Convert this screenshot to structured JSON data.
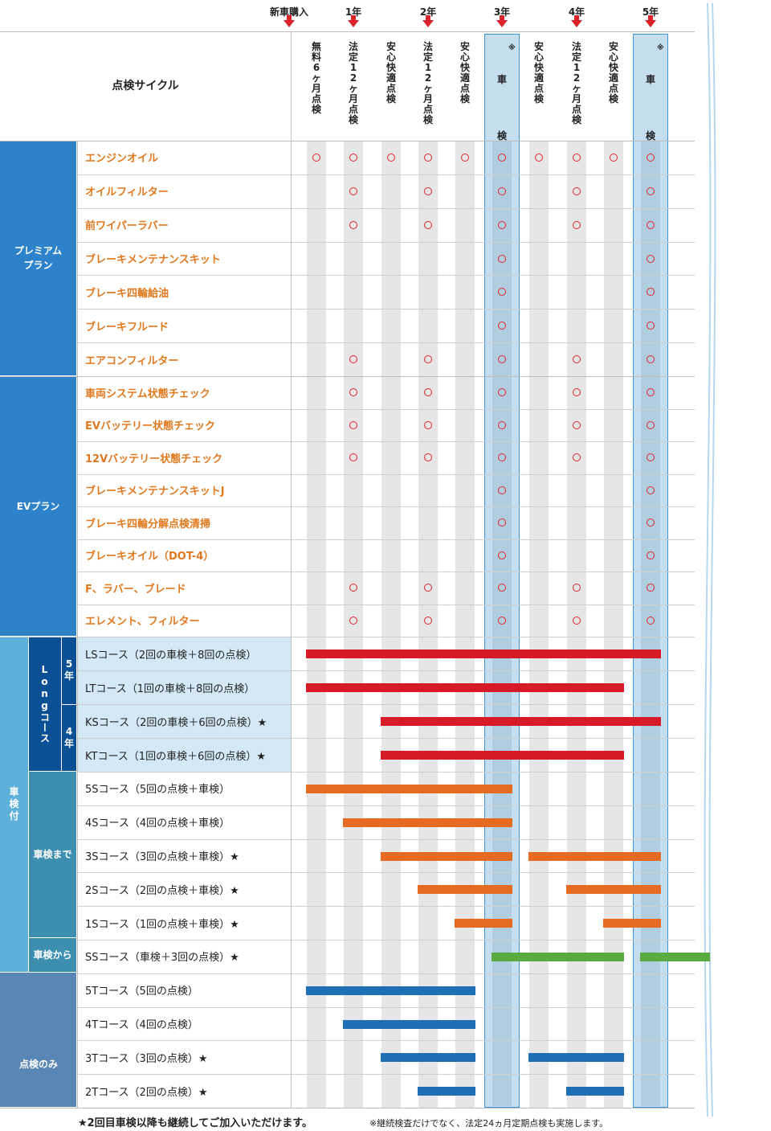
{
  "header": {
    "purchase_label": "新車購入",
    "year_labels": [
      "1年",
      "2年",
      "3年",
      "4年",
      "5年"
    ],
    "cycle_label": "点検サイクル",
    "columns": [
      "無料6ヶ月点検",
      "法定12ヶ月点検",
      "安心快適点検",
      "法定12ヶ月点検",
      "安心快適点検",
      "車検",
      "安心快適点検",
      "法定12ヶ月点検",
      "安心快適点検",
      "車検"
    ],
    "asterisk": "※"
  },
  "groups": {
    "premium": "プレミアムプラン",
    "ev": "EVプラン",
    "shaken_tsuki": "車検付",
    "long_course": "Longコース",
    "five_year": "5年",
    "four_year": "4年",
    "shaken_made": "車検まで",
    "shaken_kara": "車検から",
    "tenken_nomi": "点検のみ"
  },
  "items": [
    {
      "label": "エンジンオイル",
      "marks": [
        1,
        1,
        1,
        1,
        1,
        1,
        1,
        1,
        1,
        1
      ]
    },
    {
      "label": "オイルフィルター",
      "marks": [
        0,
        1,
        0,
        1,
        0,
        1,
        0,
        1,
        0,
        1
      ]
    },
    {
      "label": "前ワイパーラバー",
      "marks": [
        0,
        1,
        0,
        1,
        0,
        1,
        0,
        1,
        0,
        1
      ]
    },
    {
      "label": "ブレーキメンテナンスキット",
      "marks": [
        0,
        0,
        0,
        0,
        0,
        1,
        0,
        0,
        0,
        1
      ]
    },
    {
      "label": "ブレーキ四輪給油",
      "marks": [
        0,
        0,
        0,
        0,
        0,
        1,
        0,
        0,
        0,
        1
      ]
    },
    {
      "label": "ブレーキフルード",
      "marks": [
        0,
        0,
        0,
        0,
        0,
        1,
        0,
        0,
        0,
        1
      ]
    },
    {
      "label": "エアコンフィルター",
      "marks": [
        0,
        1,
        0,
        1,
        0,
        1,
        0,
        1,
        0,
        1
      ]
    },
    {
      "label": "車両システム状態チェック",
      "marks": [
        0,
        1,
        0,
        1,
        0,
        1,
        0,
        1,
        0,
        1
      ]
    },
    {
      "label": "EVバッテリー状態チェック",
      "marks": [
        0,
        1,
        0,
        1,
        0,
        1,
        0,
        1,
        0,
        1
      ]
    },
    {
      "label": "12Vバッテリー状態チェック",
      "marks": [
        0,
        1,
        0,
        1,
        0,
        1,
        0,
        1,
        0,
        1
      ]
    },
    {
      "label": "ブレーキメンテナンスキットJ",
      "marks": [
        0,
        0,
        0,
        0,
        0,
        1,
        0,
        0,
        0,
        1
      ]
    },
    {
      "label": "ブレーキ四輪分解点検清掃",
      "marks": [
        0,
        0,
        0,
        0,
        0,
        1,
        0,
        0,
        0,
        1
      ]
    },
    {
      "label": "ブレーキオイル（DOT-4）",
      "marks": [
        0,
        0,
        0,
        0,
        0,
        1,
        0,
        0,
        0,
        1
      ]
    },
    {
      "label": "F、ラバー、ブレード",
      "marks": [
        0,
        1,
        0,
        1,
        0,
        1,
        0,
        1,
        0,
        1
      ]
    },
    {
      "label": "エレメント、フィルター",
      "marks": [
        0,
        1,
        0,
        1,
        0,
        1,
        0,
        1,
        0,
        1
      ]
    }
  ],
  "courses": [
    {
      "label": "LSコース（2回の車検＋8回の点検）",
      "color": "#d71a28",
      "segments": [
        [
          0,
          9
        ]
      ]
    },
    {
      "label": "LTコース（1回の車検＋8回の点検）",
      "color": "#d71a28",
      "segments": [
        [
          0,
          8
        ]
      ]
    },
    {
      "label": "KSコース（2回の車検＋6回の点検）★",
      "color": "#d71a28",
      "segments": [
        [
          2,
          9
        ]
      ]
    },
    {
      "label": "KTコース（1回の車検＋6回の点検）★",
      "color": "#d71a28",
      "segments": [
        [
          2,
          8
        ]
      ]
    },
    {
      "label": "5Sコース（5回の点検＋車検）",
      "color": "#e56a22",
      "segments": [
        [
          0,
          5
        ]
      ]
    },
    {
      "label": "4Sコース（4回の点検＋車検）",
      "color": "#e56a22",
      "segments": [
        [
          1,
          5
        ]
      ]
    },
    {
      "label": "3Sコース（3回の点検＋車検）★",
      "color": "#e56a22",
      "segments": [
        [
          2,
          5
        ],
        [
          6,
          9
        ]
      ]
    },
    {
      "label": "2Sコース（2回の点検＋車検）★",
      "color": "#e56a22",
      "segments": [
        [
          3,
          5
        ],
        [
          7,
          9
        ]
      ]
    },
    {
      "label": "1Sコース（1回の点検＋車検）★",
      "color": "#e56a22",
      "segments": [
        [
          4,
          5
        ],
        [
          8,
          9
        ]
      ]
    },
    {
      "label": "SSコース（車検＋3回の点検）★",
      "color": "#5aab3f",
      "segments": [
        [
          5,
          8
        ],
        [
          9,
          10
        ]
      ]
    },
    {
      "label": "5Tコース（5回の点検）",
      "color": "#1f6fb4",
      "segments": [
        [
          0,
          4
        ]
      ]
    },
    {
      "label": "4Tコース（4回の点検）",
      "color": "#1f6fb4",
      "segments": [
        [
          1,
          4
        ]
      ]
    },
    {
      "label": "3Tコース（3回の点検）★",
      "color": "#1f6fb4",
      "segments": [
        [
          2,
          4
        ],
        [
          6,
          8
        ]
      ]
    },
    {
      "label": "2Tコース（2回の点検）★",
      "color": "#1f6fb4",
      "segments": [
        [
          3,
          4
        ],
        [
          7,
          8
        ]
      ]
    }
  ],
  "footer": {
    "star_note": "★2回目車検以降も継続してご加入いただけます。",
    "asterisk_note": "※継続検査だけでなく、法定24ヵ月定期点検も実施します。"
  },
  "colors": {
    "premium_ev_group": "#2e82c9",
    "shaken_group": "#5cb0d9",
    "long_group": "#0b4f94",
    "shaken_made_group": "#3d8fb0",
    "tenken_group": "#5a86b5",
    "item_text": "#e0781e",
    "mark": "#e2242c",
    "long_row_bg": "#d3e9f6",
    "stripe": "#e6e6e6",
    "shaken_column_bg": "#c4def0",
    "shaken_column_border": "#3d93d4"
  }
}
